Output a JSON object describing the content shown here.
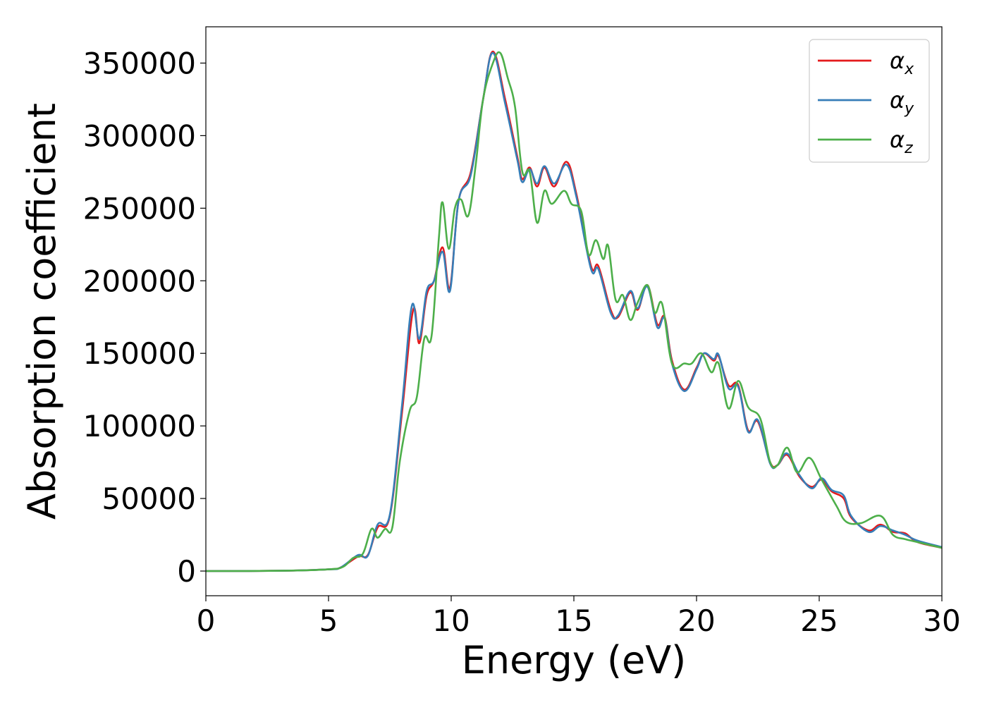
{
  "chart_data": {
    "type": "line",
    "title": "",
    "xlabel": "Energy (eV)",
    "ylabel": "Absorption coefficient",
    "xlim": [
      0,
      30
    ],
    "ylim": [
      -17000,
      375000
    ],
    "xticks": [
      0,
      5,
      10,
      15,
      20,
      25,
      30
    ],
    "yticks": [
      0,
      50000,
      100000,
      150000,
      200000,
      250000,
      300000,
      350000
    ],
    "grid": false,
    "legend_position": "top-right",
    "series": [
      {
        "name": "α",
        "subscript": "x",
        "color": "#e41a1c",
        "points": [
          [
            0,
            0
          ],
          [
            3,
            200
          ],
          [
            5,
            1200
          ],
          [
            5.5,
            2500
          ],
          [
            6.2,
            10000
          ],
          [
            6.6,
            11000
          ],
          [
            7,
            30000
          ],
          [
            7.5,
            38000
          ],
          [
            8,
            110000
          ],
          [
            8.45,
            180000
          ],
          [
            8.7,
            157000
          ],
          [
            9,
            190000
          ],
          [
            9.3,
            200000
          ],
          [
            9.65,
            223000
          ],
          [
            9.95,
            195000
          ],
          [
            10.3,
            255000
          ],
          [
            10.8,
            275000
          ],
          [
            11.3,
            325000
          ],
          [
            11.7,
            358000
          ],
          [
            12.2,
            325000
          ],
          [
            12.7,
            285000
          ],
          [
            12.9,
            270000
          ],
          [
            13.2,
            278000
          ],
          [
            13.5,
            265000
          ],
          [
            13.8,
            278000
          ],
          [
            14.2,
            265000
          ],
          [
            14.7,
            282000
          ],
          [
            15.1,
            260000
          ],
          [
            15.7,
            210000
          ],
          [
            16,
            210000
          ],
          [
            16.5,
            180000
          ],
          [
            16.8,
            175000
          ],
          [
            17.3,
            192000
          ],
          [
            17.6,
            180000
          ],
          [
            18,
            197000
          ],
          [
            18.4,
            170000
          ],
          [
            18.7,
            175000
          ],
          [
            19,
            145000
          ],
          [
            19.5,
            125000
          ],
          [
            20,
            140000
          ],
          [
            20.3,
            150000
          ],
          [
            20.7,
            145000
          ],
          [
            20.9,
            148000
          ],
          [
            21.3,
            128000
          ],
          [
            21.7,
            128000
          ],
          [
            22.1,
            97000
          ],
          [
            22.5,
            103000
          ],
          [
            23,
            75000
          ],
          [
            23.3,
            73000
          ],
          [
            23.7,
            80000
          ],
          [
            24.2,
            65000
          ],
          [
            24.7,
            58000
          ],
          [
            25.1,
            63000
          ],
          [
            25.5,
            55000
          ],
          [
            26,
            50000
          ],
          [
            26.3,
            37000
          ],
          [
            27,
            28000
          ],
          [
            27.5,
            32000
          ],
          [
            28,
            27000
          ],
          [
            28.5,
            26000
          ],
          [
            29,
            20000
          ],
          [
            30,
            16000
          ]
        ]
      },
      {
        "name": "α",
        "subscript": "y",
        "color": "#377eb8",
        "points": [
          [
            0,
            0
          ],
          [
            3,
            200
          ],
          [
            5,
            1200
          ],
          [
            5.5,
            2500
          ],
          [
            6.2,
            11000
          ],
          [
            6.6,
            10500
          ],
          [
            7,
            32000
          ],
          [
            7.5,
            39000
          ],
          [
            8,
            115000
          ],
          [
            8.4,
            183000
          ],
          [
            8.7,
            160000
          ],
          [
            9,
            193000
          ],
          [
            9.3,
            200000
          ],
          [
            9.65,
            220000
          ],
          [
            9.95,
            193000
          ],
          [
            10.3,
            255000
          ],
          [
            10.8,
            273000
          ],
          [
            11.3,
            325000
          ],
          [
            11.7,
            357000
          ],
          [
            12.2,
            322000
          ],
          [
            12.7,
            283000
          ],
          [
            12.9,
            268000
          ],
          [
            13.2,
            277000
          ],
          [
            13.5,
            267000
          ],
          [
            13.8,
            279000
          ],
          [
            14.2,
            267000
          ],
          [
            14.7,
            280000
          ],
          [
            15.1,
            258000
          ],
          [
            15.7,
            208000
          ],
          [
            16,
            208000
          ],
          [
            16.5,
            178000
          ],
          [
            16.8,
            176000
          ],
          [
            17.3,
            193000
          ],
          [
            17.6,
            181000
          ],
          [
            18,
            196000
          ],
          [
            18.4,
            168000
          ],
          [
            18.7,
            174000
          ],
          [
            19,
            143000
          ],
          [
            19.5,
            124000
          ],
          [
            20,
            139000
          ],
          [
            20.3,
            150000
          ],
          [
            20.7,
            146000
          ],
          [
            20.9,
            149000
          ],
          [
            21.3,
            126000
          ],
          [
            21.7,
            127000
          ],
          [
            22.1,
            96000
          ],
          [
            22.5,
            104000
          ],
          [
            23,
            74000
          ],
          [
            23.3,
            73000
          ],
          [
            23.7,
            81000
          ],
          [
            24.2,
            66000
          ],
          [
            24.7,
            57000
          ],
          [
            25.1,
            64000
          ],
          [
            25.5,
            56000
          ],
          [
            26,
            52000
          ],
          [
            26.3,
            38000
          ],
          [
            27,
            27000
          ],
          [
            27.5,
            31000
          ],
          [
            28,
            28000
          ],
          [
            28.5,
            25000
          ],
          [
            29,
            21000
          ],
          [
            30,
            16500
          ]
        ]
      },
      {
        "name": "α",
        "subscript": "z",
        "color": "#4daf4a",
        "points": [
          [
            0,
            0
          ],
          [
            3,
            200
          ],
          [
            5,
            1200
          ],
          [
            5.6,
            3000
          ],
          [
            6,
            9000
          ],
          [
            6.4,
            12000
          ],
          [
            6.75,
            29000
          ],
          [
            7,
            23000
          ],
          [
            7.3,
            29000
          ],
          [
            7.6,
            30000
          ],
          [
            7.9,
            75000
          ],
          [
            8.3,
            110000
          ],
          [
            8.6,
            120000
          ],
          [
            8.9,
            160000
          ],
          [
            9.2,
            162000
          ],
          [
            9.5,
            230000
          ],
          [
            9.65,
            254000
          ],
          [
            9.9,
            222000
          ],
          [
            10.15,
            250000
          ],
          [
            10.4,
            256000
          ],
          [
            10.7,
            245000
          ],
          [
            11,
            280000
          ],
          [
            11.3,
            325000
          ],
          [
            11.7,
            350000
          ],
          [
            12,
            357000
          ],
          [
            12.3,
            340000
          ],
          [
            12.6,
            320000
          ],
          [
            12.9,
            275000
          ],
          [
            13.2,
            275000
          ],
          [
            13.5,
            240000
          ],
          [
            13.8,
            262000
          ],
          [
            14.1,
            253000
          ],
          [
            14.6,
            262000
          ],
          [
            14.9,
            253000
          ],
          [
            15.3,
            248000
          ],
          [
            15.6,
            218000
          ],
          [
            15.9,
            228000
          ],
          [
            16.2,
            215000
          ],
          [
            16.4,
            224000
          ],
          [
            16.7,
            187000
          ],
          [
            17.0,
            190000
          ],
          [
            17.3,
            173000
          ],
          [
            17.6,
            185000
          ],
          [
            18,
            197000
          ],
          [
            18.3,
            178000
          ],
          [
            18.6,
            184000
          ],
          [
            19,
            143000
          ],
          [
            19.5,
            143000
          ],
          [
            19.8,
            143000
          ],
          [
            20.2,
            150000
          ],
          [
            20.6,
            137000
          ],
          [
            20.9,
            143000
          ],
          [
            21.3,
            112000
          ],
          [
            21.7,
            131000
          ],
          [
            22.1,
            113000
          ],
          [
            22.6,
            105000
          ],
          [
            23,
            75000
          ],
          [
            23.3,
            73000
          ],
          [
            23.7,
            85000
          ],
          [
            24.1,
            68000
          ],
          [
            24.6,
            78000
          ],
          [
            25.1,
            63000
          ],
          [
            25.7,
            45000
          ],
          [
            26.1,
            34000
          ],
          [
            26.7,
            33000
          ],
          [
            27.5,
            38000
          ],
          [
            28,
            25000
          ],
          [
            28.5,
            22000
          ],
          [
            29,
            20000
          ],
          [
            30,
            16000
          ]
        ]
      }
    ]
  }
}
